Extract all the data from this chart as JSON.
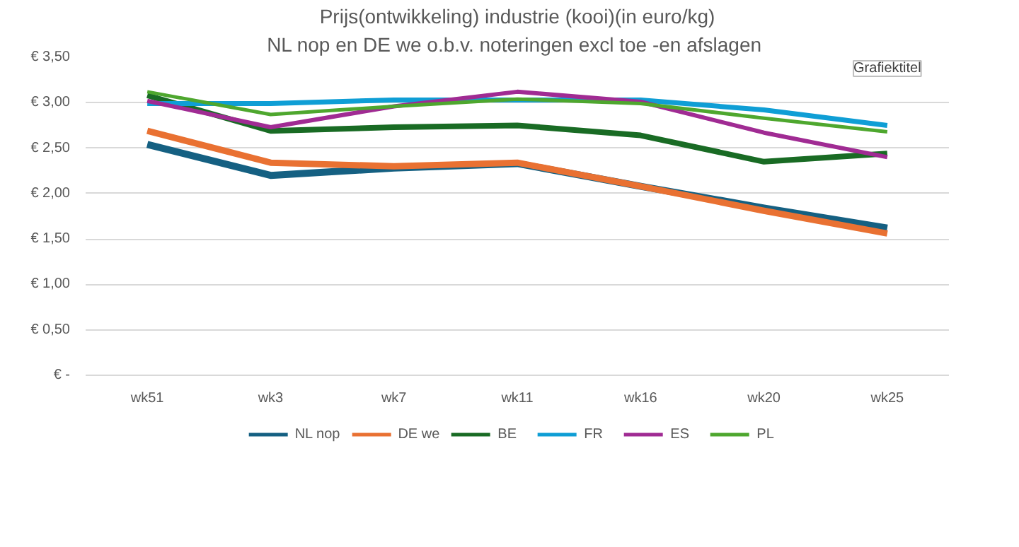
{
  "chart_data": {
    "type": "line",
    "title": "Prijs(ontwikkeling) industrie (kooi)(in euro/kg)",
    "subtitle": "NL nop en DE we o.b.v.  noteringen excl toe -en afslagen",
    "annotations": [
      "Grafiektitel"
    ],
    "categories": [
      "wk51",
      "wk3",
      "wk7",
      "wk11",
      "wk16",
      "wk20",
      "wk25"
    ],
    "series": [
      {
        "name": "NL nop",
        "color": "#156082",
        "values": [
          2.54,
          2.2,
          2.28,
          2.33,
          2.08,
          1.84,
          1.62
        ]
      },
      {
        "name": "DE we",
        "color": "#e97132",
        "values": [
          2.69,
          2.34,
          2.3,
          2.34,
          2.08,
          1.81,
          1.56
        ]
      },
      {
        "name": "BE",
        "color": "#196b24",
        "values": [
          3.08,
          2.69,
          2.73,
          2.75,
          2.64,
          2.35,
          2.44
        ]
      },
      {
        "name": "FR",
        "color": "#0f9ed5",
        "values": [
          2.99,
          2.99,
          3.03,
          3.03,
          3.03,
          2.92,
          2.75
        ]
      },
      {
        "name": "ES",
        "color": "#a02b93",
        "values": [
          3.02,
          2.73,
          2.96,
          3.12,
          3.01,
          2.67,
          2.4
        ]
      },
      {
        "name": "PL",
        "color": "#4ea72e",
        "values": [
          3.12,
          2.87,
          2.96,
          3.04,
          2.99,
          2.83,
          2.68
        ]
      }
    ],
    "ylim": [
      0,
      3.5
    ],
    "yticks": [
      {
        "value": 0,
        "label": "€ -"
      },
      {
        "value": 0.5,
        "label": "€ 0,50"
      },
      {
        "value": 1,
        "label": "€ 1,00"
      },
      {
        "value": 1.5,
        "label": "€ 1,50"
      },
      {
        "value": 2,
        "label": "€ 2,00"
      },
      {
        "value": 2.5,
        "label": "€ 2,50"
      },
      {
        "value": 3,
        "label": "€ 3,00"
      },
      {
        "value": 3.5,
        "label": "€ 3,50"
      }
    ],
    "grid": "y",
    "legend": "bottom",
    "marker": "none",
    "line_style": "solid"
  }
}
